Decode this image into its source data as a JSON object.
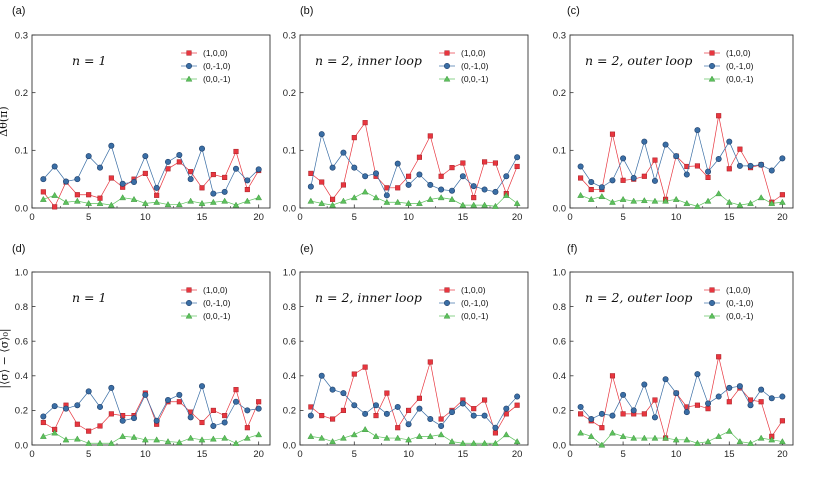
{
  "figure": {
    "colors": {
      "s100": "#e8363f",
      "s0m10": "#3a6ea5",
      "s00m1": "#5cc05c"
    },
    "ylabel_top": "Δθ(π)",
    "ylabel_bottom": "|⟨σ⟩ − ⟨σ⟩₀|"
  },
  "chart_data": [
    {
      "type": "line",
      "panel_label": "(a)",
      "annotation": "n = 1",
      "x": [
        1,
        2,
        3,
        4,
        5,
        6,
        7,
        8,
        9,
        10,
        11,
        12,
        13,
        14,
        15,
        16,
        17,
        18,
        19,
        20
      ],
      "xlim": [
        0,
        21
      ],
      "xticks": [
        0,
        5,
        10,
        15,
        20
      ],
      "ylim": [
        0,
        0.3
      ],
      "yticks": [
        "0.0",
        "0.1",
        "0.2",
        "0.3"
      ],
      "ytick_values": [
        0,
        0.1,
        0.2,
        0.3
      ],
      "ylabel": "Δθ(π)",
      "series": [
        {
          "name": "(1,0,0)",
          "values": [
            0.028,
            0.002,
            0.045,
            0.023,
            0.023,
            0.017,
            0.052,
            0.036,
            0.05,
            0.06,
            0.022,
            0.068,
            0.08,
            0.063,
            0.035,
            0.058,
            0.053,
            0.098,
            0.032,
            0.065
          ]
        },
        {
          "name": "(0,-1,0)",
          "values": [
            0.05,
            0.072,
            0.046,
            0.05,
            0.09,
            0.07,
            0.108,
            0.042,
            0.045,
            0.09,
            0.035,
            0.08,
            0.092,
            0.05,
            0.103,
            0.025,
            0.028,
            0.068,
            0.048,
            0.067
          ]
        },
        {
          "name": "(0,0,-1)",
          "values": [
            0.015,
            0.022,
            0.01,
            0.012,
            0.008,
            0.008,
            0.005,
            0.018,
            0.015,
            0.008,
            0.01,
            0.006,
            0.006,
            0.012,
            0.008,
            0.01,
            0.012,
            0.005,
            0.012,
            0.018
          ]
        }
      ]
    },
    {
      "type": "line",
      "panel_label": "(b)",
      "annotation": "n = 2, inner loop",
      "x": [
        1,
        2,
        3,
        4,
        5,
        6,
        7,
        8,
        9,
        10,
        11,
        12,
        13,
        14,
        15,
        16,
        17,
        18,
        19,
        20
      ],
      "xlim": [
        0,
        21
      ],
      "xticks": [
        0,
        5,
        10,
        15,
        20
      ],
      "ylim": [
        0,
        0.3
      ],
      "yticks": [
        "0.0",
        "0.1",
        "0.2",
        "0.3"
      ],
      "ytick_values": [
        0,
        0.1,
        0.2,
        0.3
      ],
      "ylabel": "",
      "series": [
        {
          "name": "(1,0,0)",
          "values": [
            0.06,
            0.045,
            0.015,
            0.04,
            0.122,
            0.148,
            0.055,
            0.035,
            0.035,
            0.055,
            0.088,
            0.125,
            0.055,
            0.07,
            0.078,
            0.018,
            0.08,
            0.078,
            0.025,
            0.072
          ]
        },
        {
          "name": "(0,-1,0)",
          "values": [
            0.037,
            0.128,
            0.07,
            0.096,
            0.07,
            0.055,
            0.06,
            0.022,
            0.077,
            0.04,
            0.058,
            0.04,
            0.032,
            0.03,
            0.055,
            0.038,
            0.032,
            0.028,
            0.055,
            0.088
          ]
        },
        {
          "name": "(0,0,-1)",
          "values": [
            0.012,
            0.008,
            0.005,
            0.012,
            0.018,
            0.028,
            0.018,
            0.01,
            0.01,
            0.008,
            0.008,
            0.015,
            0.018,
            0.015,
            0.005,
            0.005,
            0.005,
            0.003,
            0.022,
            0.008
          ]
        }
      ]
    },
    {
      "type": "line",
      "panel_label": "(c)",
      "annotation": "n = 2, outer loop",
      "x": [
        1,
        2,
        3,
        4,
        5,
        6,
        7,
        8,
        9,
        10,
        11,
        12,
        13,
        14,
        15,
        16,
        17,
        18,
        19,
        20
      ],
      "xlim": [
        0,
        21
      ],
      "xticks": [
        0,
        5,
        10,
        15,
        20
      ],
      "ylim": [
        0,
        0.3
      ],
      "yticks": [
        "0.0",
        "0.1",
        "0.2",
        "0.3"
      ],
      "ytick_values": [
        0,
        0.1,
        0.2,
        0.3
      ],
      "ylabel": "",
      "series": [
        {
          "name": "(1,0,0)",
          "values": [
            0.052,
            0.032,
            0.032,
            0.128,
            0.048,
            0.05,
            0.055,
            0.083,
            0.015,
            0.09,
            0.072,
            0.073,
            0.053,
            0.16,
            0.068,
            0.102,
            0.07,
            0.075,
            0.01,
            0.023
          ]
        },
        {
          "name": "(0,-1,0)",
          "values": [
            0.072,
            0.045,
            0.036,
            0.048,
            0.086,
            0.052,
            0.115,
            0.047,
            0.11,
            0.09,
            0.058,
            0.135,
            0.063,
            0.085,
            0.115,
            0.073,
            0.073,
            0.075,
            0.065,
            0.086
          ]
        },
        {
          "name": "(0,0,-1)",
          "values": [
            0.022,
            0.015,
            0.02,
            0.01,
            0.015,
            0.012,
            0.013,
            0.012,
            0.012,
            0.015,
            0.008,
            0.003,
            0.012,
            0.025,
            0.01,
            0.005,
            0.008,
            0.018,
            0.008,
            0.01
          ]
        }
      ]
    },
    {
      "type": "line",
      "panel_label": "(d)",
      "annotation": "n = 1",
      "x": [
        1,
        2,
        3,
        4,
        5,
        6,
        7,
        8,
        9,
        10,
        11,
        12,
        13,
        14,
        15,
        16,
        17,
        18,
        19,
        20
      ],
      "xlim": [
        0,
        21
      ],
      "xticks": [
        0,
        5,
        10,
        15,
        20
      ],
      "ylim": [
        0,
        1.0
      ],
      "yticks": [
        "0.0",
        "0.2",
        "0.4",
        "0.6",
        "0.8",
        "1.0"
      ],
      "ytick_values": [
        0,
        0.2,
        0.4,
        0.6,
        0.8,
        1.0
      ],
      "ylabel": "|⟨σ⟩ − ⟨σ⟩₀|",
      "series": [
        {
          "name": "(1,0,0)",
          "values": [
            0.13,
            0.09,
            0.23,
            0.12,
            0.08,
            0.11,
            0.18,
            0.17,
            0.17,
            0.3,
            0.12,
            0.25,
            0.25,
            0.19,
            0.13,
            0.2,
            0.17,
            0.32,
            0.1,
            0.25
          ]
        },
        {
          "name": "(0,-1,0)",
          "values": [
            0.165,
            0.225,
            0.21,
            0.23,
            0.31,
            0.22,
            0.33,
            0.14,
            0.155,
            0.29,
            0.14,
            0.26,
            0.29,
            0.16,
            0.34,
            0.11,
            0.13,
            0.25,
            0.2,
            0.21
          ]
        },
        {
          "name": "(0,0,-1)",
          "values": [
            0.05,
            0.07,
            0.03,
            0.035,
            0.01,
            0.01,
            0.01,
            0.05,
            0.045,
            0.03,
            0.03,
            0.02,
            0.015,
            0.04,
            0.03,
            0.035,
            0.04,
            0.01,
            0.04,
            0.06
          ]
        }
      ]
    },
    {
      "type": "line",
      "panel_label": "(e)",
      "annotation": "n = 2, inner loop",
      "x": [
        1,
        2,
        3,
        4,
        5,
        6,
        7,
        8,
        9,
        10,
        11,
        12,
        13,
        14,
        15,
        16,
        17,
        18,
        19,
        20
      ],
      "xlim": [
        0,
        21
      ],
      "xticks": [
        0,
        5,
        10,
        15,
        20
      ],
      "ylim": [
        0,
        1.0
      ],
      "yticks": [
        "0.0",
        "0.2",
        "0.4",
        "0.6",
        "0.8",
        "1.0"
      ],
      "ytick_values": [
        0,
        0.2,
        0.4,
        0.6,
        0.8,
        1.0
      ],
      "ylabel": "",
      "series": [
        {
          "name": "(1,0,0)",
          "values": [
            0.22,
            0.17,
            0.15,
            0.2,
            0.41,
            0.45,
            0.17,
            0.3,
            0.1,
            0.2,
            0.27,
            0.48,
            0.15,
            0.2,
            0.26,
            0.21,
            0.26,
            0.07,
            0.18,
            0.23
          ]
        },
        {
          "name": "(0,-1,0)",
          "values": [
            0.17,
            0.4,
            0.32,
            0.3,
            0.23,
            0.18,
            0.23,
            0.18,
            0.22,
            0.12,
            0.21,
            0.15,
            0.11,
            0.19,
            0.24,
            0.17,
            0.17,
            0.1,
            0.21,
            0.28
          ]
        },
        {
          "name": "(0,0,-1)",
          "values": [
            0.05,
            0.04,
            0.02,
            0.04,
            0.06,
            0.09,
            0.05,
            0.04,
            0.04,
            0.03,
            0.05,
            0.05,
            0.06,
            0.02,
            0.01,
            0.01,
            0.01,
            0.01,
            0.06,
            0.02
          ]
        }
      ]
    },
    {
      "type": "line",
      "panel_label": "(f)",
      "annotation": "n = 2, outer loop",
      "x": [
        1,
        2,
        3,
        4,
        5,
        6,
        7,
        8,
        9,
        10,
        11,
        12,
        13,
        14,
        15,
        16,
        17,
        18,
        19,
        20
      ],
      "xlim": [
        0,
        21
      ],
      "xticks": [
        0,
        5,
        10,
        15,
        20
      ],
      "ylim": [
        0,
        1.0
      ],
      "yticks": [
        "0.0",
        "0.2",
        "0.4",
        "0.6",
        "0.8",
        "1.0"
      ],
      "ytick_values": [
        0,
        0.2,
        0.4,
        0.6,
        0.8,
        1.0
      ],
      "ylabel": "",
      "series": [
        {
          "name": "(1,0,0)",
          "values": [
            0.18,
            0.14,
            0.1,
            0.4,
            0.18,
            0.18,
            0.18,
            0.26,
            0.04,
            0.3,
            0.22,
            0.23,
            0.21,
            0.51,
            0.25,
            0.33,
            0.26,
            0.25,
            0.05,
            0.14
          ]
        },
        {
          "name": "(0,-1,0)",
          "values": [
            0.22,
            0.15,
            0.18,
            0.17,
            0.29,
            0.2,
            0.35,
            0.16,
            0.38,
            0.3,
            0.19,
            0.41,
            0.24,
            0.28,
            0.33,
            0.34,
            0.23,
            0.32,
            0.27,
            0.28
          ]
        },
        {
          "name": "(0,0,-1)",
          "values": [
            0.07,
            0.05,
            0.0,
            0.07,
            0.05,
            0.04,
            0.04,
            0.04,
            0.04,
            0.03,
            0.03,
            0.01,
            0.02,
            0.05,
            0.08,
            0.02,
            0.01,
            0.04,
            0.03,
            0.02
          ]
        }
      ]
    }
  ]
}
